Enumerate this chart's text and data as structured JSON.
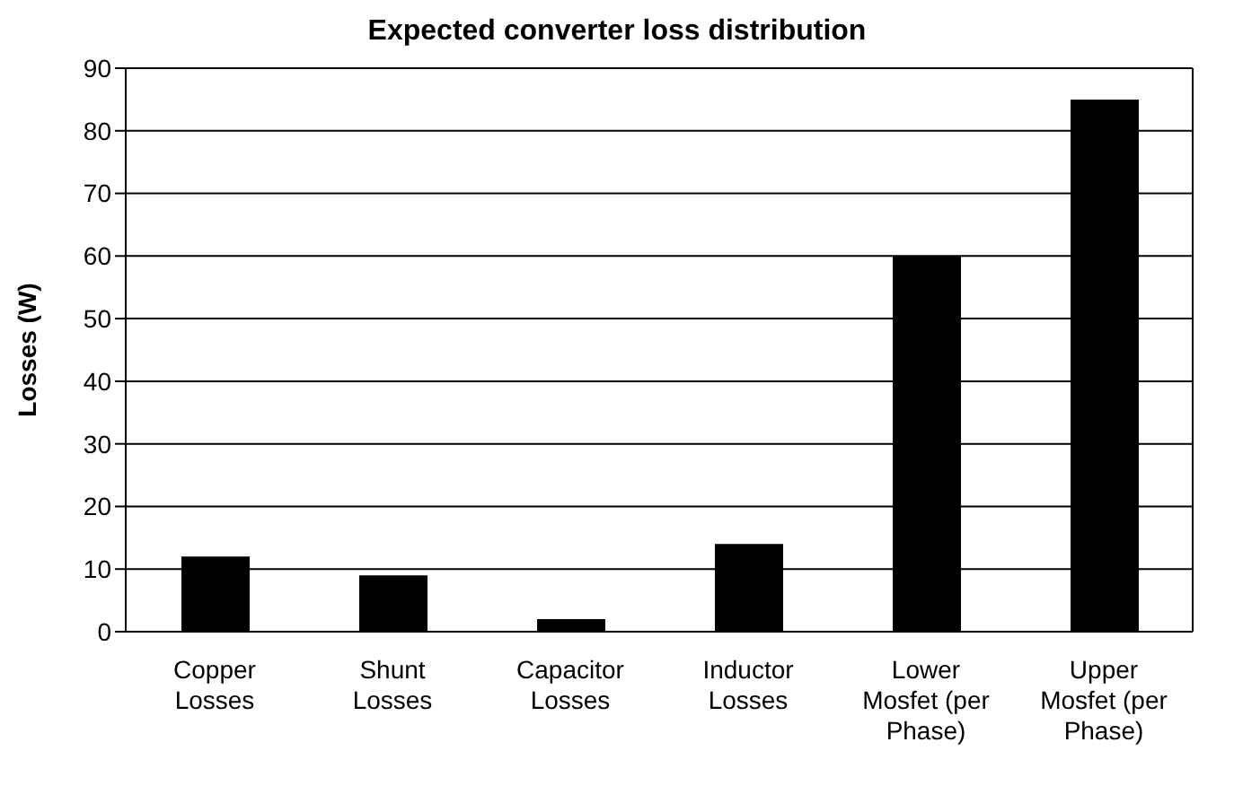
{
  "chart_data": {
    "type": "bar",
    "title": "Expected converter loss distribution",
    "ylabel": "Losses (W)",
    "categories": [
      "Copper Losses",
      "Shunt Losses",
      "Capacitor Losses",
      "Inductor Losses",
      "Lower Mosfet (per Phase)",
      "Upper Mosfet (per Phase)"
    ],
    "values": [
      12,
      9,
      2,
      14,
      60,
      85
    ],
    "color": "#000000",
    "ylim": [
      0,
      90
    ],
    "yticks": [
      0,
      10,
      20,
      30,
      40,
      50,
      60,
      70,
      80,
      90
    ],
    "grid": "y",
    "legend": false
  }
}
